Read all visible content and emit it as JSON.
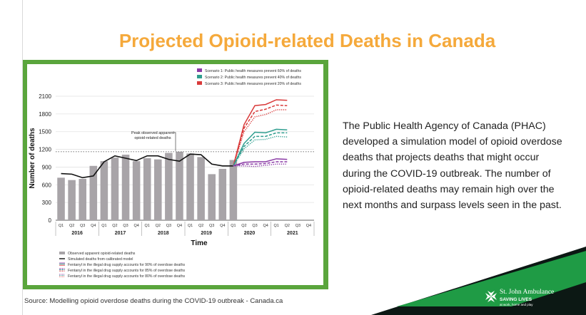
{
  "slide": {
    "title": "Projected Opioid-related Deaths in Canada",
    "body": "The Public Health Agency of Canada (PHAC) developed a simulation model of opioid overdose deaths that projects deaths that might occur during the COVID-19 outbreak. The number of opioid-related deaths may remain high over the next months and surpass levels seen in the past.",
    "source": "Source: Modelling opioid overdose deaths during the COVID-19 outbreak - Canada.ca",
    "logo": {
      "name": "St. John Ambulance",
      "tagline": "SAVING LIVES",
      "subtag": "at work, home and play",
      "colors": {
        "green": "#1e8e3e",
        "dark": "#0b1a16"
      }
    },
    "colors": {
      "title": "#f5a93b",
      "frame": "#5aa53c"
    }
  },
  "chart_data": {
    "type": "bar",
    "title": "",
    "xlabel": "Time",
    "ylabel": "Number of deaths",
    "ylim": [
      0,
      2100
    ],
    "yticks": [
      0,
      300,
      600,
      900,
      1200,
      1500,
      1800,
      2100
    ],
    "grid": true,
    "legend_position": "bottom-left",
    "quarter_labels": [
      "Q1",
      "Q2",
      "Q3",
      "Q4",
      "Q1",
      "Q2",
      "Q3",
      "Q4",
      "Q1",
      "Q2",
      "Q3",
      "Q4",
      "Q1",
      "Q2",
      "Q3",
      "Q4",
      "Q1",
      "Q2",
      "Q3",
      "Q4",
      "Q1",
      "Q2",
      "Q3",
      "Q4"
    ],
    "years": [
      {
        "label": "2016",
        "start": 0,
        "end": 3
      },
      {
        "label": "2017",
        "start": 4,
        "end": 7
      },
      {
        "label": "2018",
        "start": 8,
        "end": 11
      },
      {
        "label": "2019",
        "start": 12,
        "end": 15
      },
      {
        "label": "2020",
        "start": 16,
        "end": 19
      },
      {
        "label": "2021",
        "start": 20,
        "end": 23
      }
    ],
    "observed": {
      "name": "Observed apparent opioid-related deaths",
      "color": "#a8a4a8",
      "values": [
        720,
        680,
        700,
        920,
        1000,
        1060,
        1110,
        1000,
        1050,
        1030,
        1140,
        1160,
        1130,
        1070,
        780,
        870,
        1020
      ]
    },
    "simulated": {
      "name": "Simulated deaths from calibrated model",
      "color": "#111111",
      "values": [
        790,
        780,
        720,
        750,
        990,
        1090,
        1050,
        1010,
        1090,
        1090,
        1030,
        1000,
        1120,
        1110,
        950,
        920,
        920
      ]
    },
    "peak_observed": {
      "value": 1160,
      "label_line1": "Peak observed apparent",
      "label_line2": "opioid-related deaths"
    },
    "scenario_labels": [
      "Scenario 1: Public health measures prevent 60% of deaths",
      "Scenario 2: Public health measures prevent 40% of deaths",
      "Scenario 3: Public health measures prevent 20% of deaths"
    ],
    "scenarios": [
      {
        "name": "Scenario 3",
        "color": "#d93a3a",
        "x": [
          16,
          17,
          18,
          19,
          20,
          21
        ],
        "f90": [
          920,
          1620,
          1940,
          1960,
          2040,
          2030
        ],
        "f85": [
          920,
          1560,
          1840,
          1880,
          1950,
          1940
        ],
        "f80": [
          920,
          1500,
          1750,
          1790,
          1870,
          1870
        ]
      },
      {
        "name": "Scenario 2",
        "color": "#2f9e8f",
        "x": [
          16,
          17,
          18,
          19,
          20,
          21
        ],
        "f90": [
          920,
          1300,
          1490,
          1480,
          1540,
          1530
        ],
        "f85": [
          920,
          1250,
          1420,
          1420,
          1480,
          1480
        ],
        "f80": [
          920,
          1210,
          1360,
          1370,
          1420,
          1410
        ]
      },
      {
        "name": "Scenario 1",
        "color": "#8a3aa5",
        "x": [
          16,
          17,
          18,
          19,
          20,
          21
        ],
        "f90": [
          920,
          980,
          990,
          990,
          1040,
          1030
        ],
        "f85": [
          920,
          950,
          950,
          960,
          990,
          990
        ],
        "f80": [
          920,
          920,
          910,
          930,
          950,
          950
        ]
      }
    ],
    "legend_entries": [
      "Observed apparent opioid-related deaths",
      "Simulated deaths from calibrated model",
      "Fentanyl in the illegal drug supply accounts for 90% of overdose deaths",
      "Fentanyl in the illegal drug supply accounts for 85% of overdose deaths",
      "Fentanyl in the illegal drug supply accounts for 80% of overdose deaths"
    ]
  }
}
